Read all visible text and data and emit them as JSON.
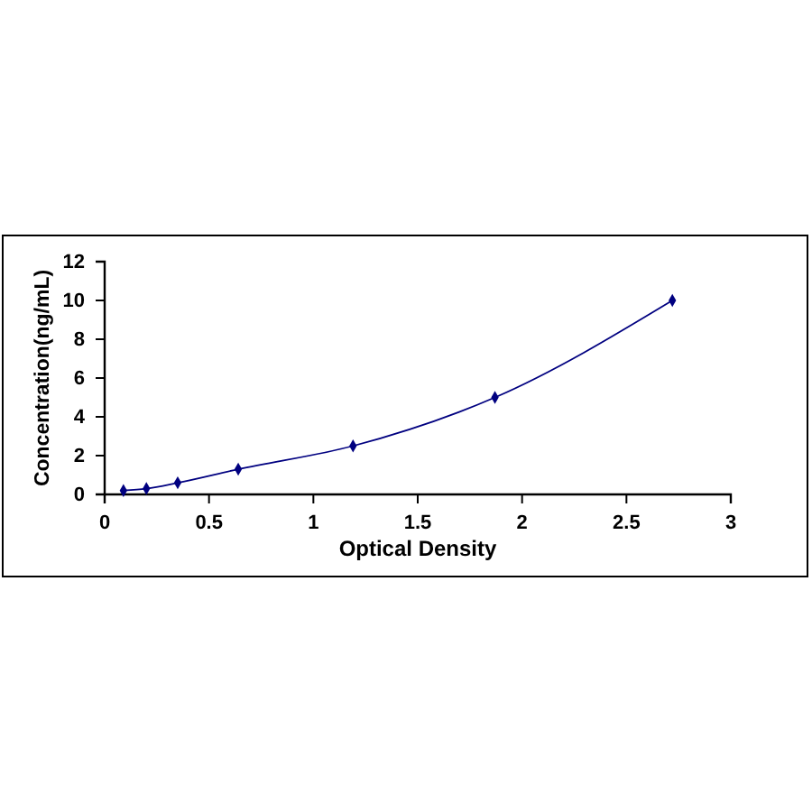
{
  "chart_data": {
    "type": "line",
    "xlabel": "Optical Density",
    "ylabel": "Concentration(ng/mL)",
    "x": [
      0.09,
      0.2,
      0.35,
      0.64,
      1.19,
      1.87,
      2.72
    ],
    "series": [
      {
        "color": "#000080",
        "values": [
          0.2,
          0.3,
          0.6,
          1.3,
          2.5,
          5,
          10
        ]
      }
    ],
    "xlim": [
      0,
      3
    ],
    "ylim": [
      0,
      12
    ],
    "xticks": [
      0,
      0.5,
      1,
      1.5,
      2,
      2.5,
      3
    ],
    "yticks": [
      0,
      2,
      4,
      6,
      8,
      10,
      12
    ],
    "grid": false,
    "marker": "diamond",
    "line_style": "solid"
  }
}
